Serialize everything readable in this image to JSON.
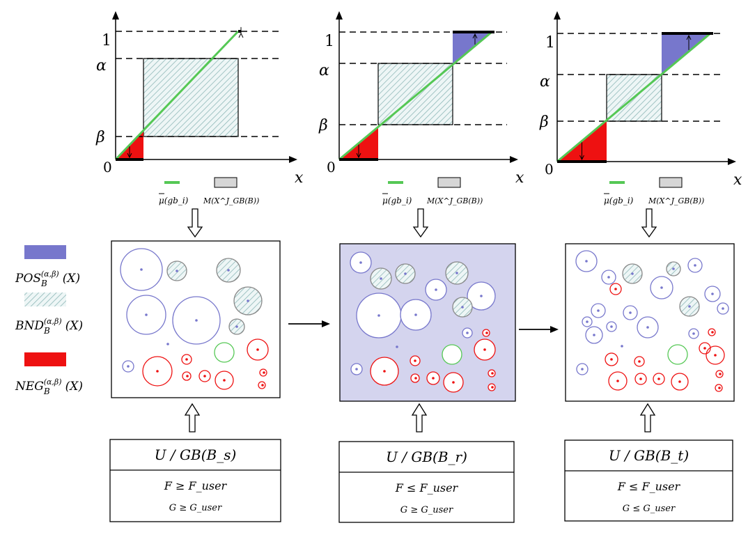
{
  "colors": {
    "pos": "#7777cc",
    "neg": "#ee1111",
    "bnd_stroke": "#8fb8b8",
    "bnd_fill": "#e6f3f3",
    "green_line": "#55c855",
    "pos_panel_bg": "#d4d4ee",
    "gray_box": "#d6d6d6"
  },
  "legend": {
    "pos_label": "POS",
    "bnd_label": "BND",
    "neg_label": "NEG",
    "sub": "B",
    "sup": "(α,β)",
    "arg": "(X)"
  },
  "axes": {
    "x_label": "x",
    "one_label": "1",
    "zero_label": "0",
    "alpha_label": "α",
    "beta_label": "β"
  },
  "plot_legend": {
    "mu_label": "μ(gb_i)",
    "m_label": "M(X^J_GB(B))"
  },
  "panels": [
    {
      "id": "s",
      "condition_title": "U / GB(B_s)",
      "ineq1": "F ≥ F_user",
      "ineq2": "G ≥ G_user",
      "highlighted": false
    },
    {
      "id": "r",
      "condition_title": "U / GB(B_r)",
      "ineq1": "F ≤ F_user",
      "ineq2": "G ≥ G_user",
      "highlighted": true
    },
    {
      "id": "t",
      "condition_title": "U / GB(B_t)",
      "ineq1": "F ≤ F_user",
      "ineq2": "G ≤ G_user",
      "highlighted": false
    }
  ]
}
